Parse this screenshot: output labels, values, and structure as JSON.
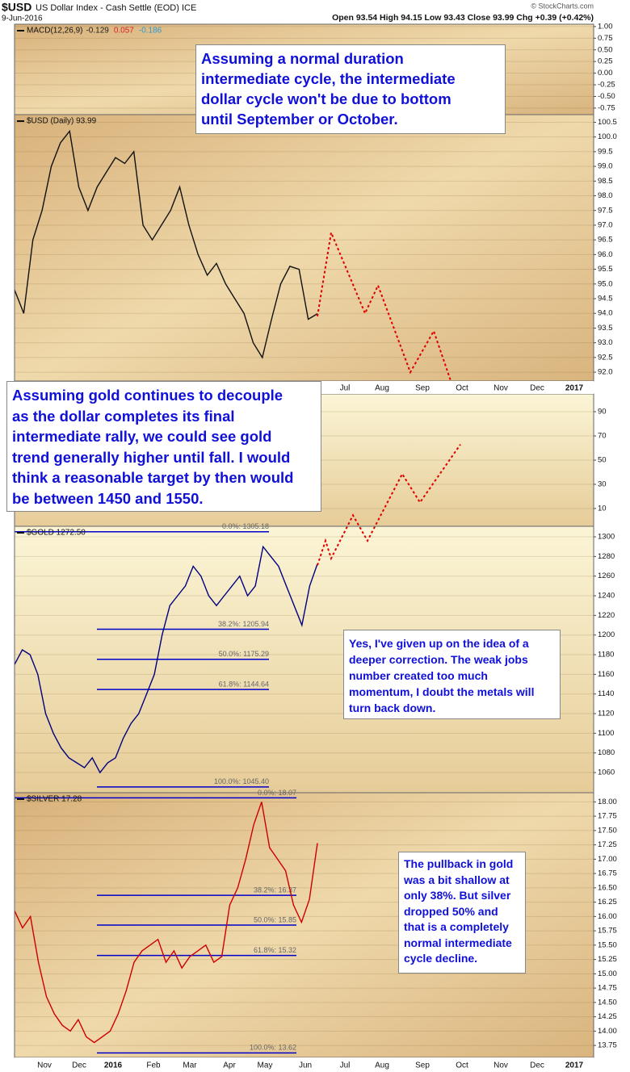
{
  "header": {
    "symbol": "$USD",
    "name": "US Dollar Index - Cash Settle (EOD) ICE",
    "date": "9-Jun-2016",
    "quote": "Open 93.54 High 94.15 Low 93.43 Close 93.99 Chg +0.39 (+0.42%)",
    "credit": "© StockCharts.com"
  },
  "annotations": [
    {
      "lines": [
        "Assuming a normal duration",
        "intermediate cycle, the intermediate",
        "dollar cycle won't be due to bottom",
        "until September or October."
      ]
    },
    {
      "lines": [
        "Assuming gold continues to decouple",
        "as the dollar completes its final",
        "intermediate rally, we could see gold",
        "trend generally higher until fall. I would",
        "think a reasonable target by then would",
        "be between 1450 and 1550."
      ]
    },
    {
      "lines": [
        "Yes, I've given up on the idea of a",
        "deeper correction. The weak jobs",
        "number created too much",
        "momentum, I doubt the metals will",
        "turn back down."
      ]
    },
    {
      "lines": [
        "The pullback in gold",
        "was a bit shallow at",
        "only 38%. But silver",
        "dropped 50% and",
        "that is a completely",
        "normal intermediate",
        "cycle decline."
      ]
    }
  ],
  "chart_data": [
    {
      "type": "line",
      "title": "MACD(12,26,9)",
      "legend_values": [
        {
          "label": "-0.129",
          "color": "#222222"
        },
        {
          "label": "0.057",
          "color": "#dd2222"
        },
        {
          "label": "-0.186",
          "color": "#3399cc"
        }
      ],
      "ylim": [
        -0.89,
        1.05
      ],
      "yticks": [
        {
          "value": 1,
          "label": "1.00"
        },
        0.75,
        {
          "value": 0.5,
          "label": "0.50"
        },
        0.25,
        {
          "value": 0,
          "label": "0.00"
        },
        -0.25,
        {
          "value": -0.5,
          "label": "-0.50"
        },
        -0.75
      ],
      "grid": true,
      "series": []
    },
    {
      "type": "line",
      "title": "$USD (Daily) 93.99",
      "ylim": [
        91.7,
        100.76
      ],
      "yticks": [
        {
          "value": 92,
          "label": "92.0"
        },
        92.5,
        {
          "value": 93,
          "label": "93.0"
        },
        93.5,
        {
          "value": 94,
          "label": "94.0"
        },
        94.5,
        {
          "value": 95,
          "label": "95.0"
        },
        95.5,
        {
          "value": 96,
          "label": "96.0"
        },
        96.5,
        {
          "value": 97,
          "label": "97.0"
        },
        97.5,
        {
          "value": 98,
          "label": "98.0"
        },
        98.5,
        {
          "value": 99,
          "label": "99.0"
        },
        99.5,
        {
          "value": 100,
          "label": "100.0"
        },
        100.5
      ],
      "grid": true,
      "series": [
        {
          "color": "#111111",
          "values": [
            94.8,
            94.0,
            96.5,
            97.5,
            99.0,
            99.8,
            100.2,
            98.3,
            97.5,
            98.3,
            98.8,
            99.3,
            99.1,
            99.5,
            97.0,
            96.5,
            97.0,
            97.5,
            98.3,
            97.0,
            96.0,
            95.3,
            95.7,
            95.0,
            94.5,
            94.0,
            93.0,
            92.5,
            93.8,
            95.0,
            95.6,
            95.5,
            93.8,
            93.99
          ]
        }
      ],
      "forecast": {
        "color": "#e00000",
        "values": [
          93.9,
          96.75,
          94.0,
          94.95,
          92.0,
          93.4,
          90.1
        ]
      }
    },
    {
      "type": "line",
      "title": null,
      "ylim": [
        -4.7,
        104.7
      ],
      "yticks": [
        90,
        70,
        50,
        30,
        10
      ],
      "grid": true,
      "series": []
    },
    {
      "type": "line",
      "title": "$GOLD 1272.50",
      "ylim": [
        1039.5,
        1310.7
      ],
      "yticks": [
        1060,
        1080,
        1100,
        1120,
        1140,
        1160,
        1180,
        1200,
        1220,
        1240,
        1260,
        1280,
        1300
      ],
      "grid": true,
      "series": [
        {
          "color": "#000080",
          "values": [
            1170,
            1185,
            1180,
            1160,
            1120,
            1100,
            1085,
            1075,
            1070,
            1065,
            1075,
            1060,
            1070,
            1075,
            1095,
            1110,
            1120,
            1140,
            1160,
            1200,
            1230,
            1240,
            1250,
            1270,
            1260,
            1240,
            1230,
            1240,
            1250,
            1260,
            1240,
            1250,
            1290,
            1280,
            1270,
            1250,
            1230,
            1210,
            1250,
            1272.5
          ]
        }
      ],
      "levels": [
        {
          "label": "0.0%: 1305.18",
          "value": 1305.18
        },
        {
          "label": "38.2%: 1205.94",
          "value": 1205.94
        },
        {
          "label": "50.0%: 1175.29",
          "value": 1175.29
        },
        {
          "label": "61.8%: 1144.64",
          "value": 1144.64
        },
        {
          "label": "100.0%: 1045.40",
          "value": 1045.4
        }
      ],
      "forecast": {
        "color": "#e00000",
        "values": [
          1271,
          1296,
          1278,
          1322,
          1296,
          1364,
          1335,
          1394
        ]
      }
    },
    {
      "type": "line",
      "title": "$SILVER 17.28",
      "ylim": [
        13.54,
        18.16
      ],
      "yticks": [
        13.75,
        {
          "value": 14,
          "label": "14.00"
        },
        14.25,
        {
          "value": 14.5,
          "label": "14.50"
        },
        14.75,
        {
          "value": 15,
          "label": "15.00"
        },
        15.25,
        {
          "value": 15.5,
          "label": "15.50"
        },
        15.75,
        {
          "value": 16,
          "label": "16.00"
        },
        16.25,
        {
          "value": 16.5,
          "label": "16.50"
        },
        16.75,
        {
          "value": 17,
          "label": "17.00"
        },
        17.25,
        {
          "value": 17.5,
          "label": "17.50"
        },
        17.75,
        {
          "value": 18,
          "label": "18.00"
        }
      ],
      "grid": true,
      "series": [
        {
          "color": "#cc0000",
          "values": [
            16.1,
            15.8,
            16.0,
            15.2,
            14.6,
            14.3,
            14.1,
            14.0,
            14.2,
            13.9,
            13.8,
            13.9,
            14.0,
            14.3,
            14.7,
            15.2,
            15.4,
            15.5,
            15.6,
            15.2,
            15.4,
            15.1,
            15.3,
            15.4,
            15.5,
            15.2,
            15.3,
            16.2,
            16.5,
            17.0,
            17.6,
            18.0,
            17.2,
            17.0,
            16.8,
            16.2,
            15.9,
            16.3,
            17.28
          ]
        }
      ],
      "levels": [
        {
          "label": "0.0%: 18.07",
          "value": 18.07
        },
        {
          "label": "38.2%: 16.37",
          "value": 16.37
        },
        {
          "label": "50.0%: 15.85",
          "value": 15.85
        },
        {
          "label": "61.8%: 15.32",
          "value": 15.32
        },
        {
          "label": "100.0%: 13.62",
          "value": 13.62
        }
      ],
      "xticks": [
        "Nov",
        "Dec",
        "2016",
        "Feb",
        "Mar",
        "Apr",
        "May",
        "Jun",
        "Jul",
        "Aug",
        "Sep",
        "Oct",
        "Nov",
        "Dec",
        "2017"
      ]
    }
  ]
}
